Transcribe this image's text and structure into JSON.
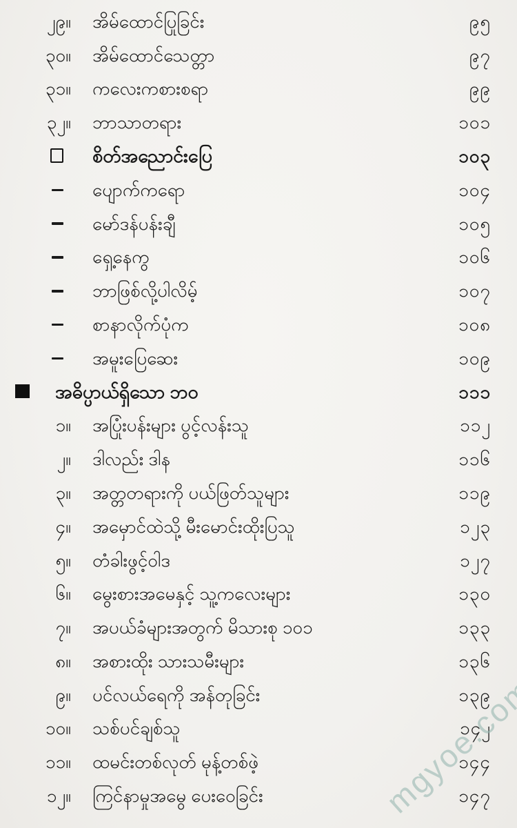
{
  "page": {
    "background_color": "#f2f1ee",
    "text_color": "#1a1a1a",
    "watermark": {
      "text": "mgyoe.com",
      "color": "rgba(152,184,176,0.6)"
    }
  },
  "toc": {
    "entries": [
      {
        "type": "number",
        "marker": "၂၉။",
        "title": "အိမ်ထောင်ပြုခြင်း",
        "page": "၉၅",
        "bold": false
      },
      {
        "type": "number",
        "marker": "၃၀။",
        "title": "အိမ်ထောင်သေတ္တာ",
        "page": "၉၇",
        "bold": false
      },
      {
        "type": "number",
        "marker": "၃၁။",
        "title": "ကလေးကစားစရာ",
        "page": "၉၉",
        "bold": false
      },
      {
        "type": "number",
        "marker": "၃၂။",
        "title": "ဘာသာတရား",
        "page": "၁၀၁",
        "bold": false
      },
      {
        "type": "square-open",
        "title": "စိတ်အညောင်းပြေ",
        "page": "၁၀၃",
        "bold": true
      },
      {
        "type": "dash",
        "title": "ပျောက်ကရော",
        "page": "၁၀၄",
        "bold": false
      },
      {
        "type": "dash",
        "title": "မော်ဒန်ပန်းချီ",
        "page": "၁၀၅",
        "bold": false
      },
      {
        "type": "dash",
        "title": "ရှေ့နေကွ",
        "page": "၁၀၆",
        "bold": false
      },
      {
        "type": "dash",
        "title": "ဘာဖြစ်လို့ပါလိမ့်",
        "page": "၁၀၇",
        "bold": false
      },
      {
        "type": "dash",
        "title": "စာနာလိုက်ပုံက",
        "page": "၁၀၈",
        "bold": false
      },
      {
        "type": "dash",
        "title": "အမူးပြေဆေး",
        "page": "၁၀၉",
        "bold": false
      },
      {
        "type": "square-filled",
        "title": "အဓိပ္ပာယ်ရှိသော ဘဝ",
        "page": "၁၁၁",
        "bold": true
      },
      {
        "type": "number",
        "marker": "၁။",
        "title": "အပြုံးပန်းများ ပွင့်လန်းသူ",
        "page": "၁၁၂",
        "bold": false
      },
      {
        "type": "number",
        "marker": "၂။",
        "title": "ဒါလည်း ဒါန",
        "page": "၁၁၆",
        "bold": false
      },
      {
        "type": "number",
        "marker": "၃။",
        "title": "အတ္တတရားကို ပယ်ဖြတ်သူများ",
        "page": "၁၁၉",
        "bold": false
      },
      {
        "type": "number",
        "marker": "၄။",
        "title": "အမှောင်ထဲသို့ မီးမောင်းထိုးပြသူ",
        "page": "၁၂၃",
        "bold": false
      },
      {
        "type": "number",
        "marker": "၅။",
        "title": "တံခါးဖွင့်ဝါဒ",
        "page": "၁၂၇",
        "bold": false
      },
      {
        "type": "number",
        "marker": "၆။",
        "title": "မွေးစားအမေနှင့် သူ့ကလေးများ",
        "page": "၁၃၀",
        "bold": false
      },
      {
        "type": "number",
        "marker": "၇။",
        "title": "အပယ်ခံများအတွက် မိသားစု ၁၀၁",
        "page": "၁၃၃",
        "bold": false
      },
      {
        "type": "number",
        "marker": "၈။",
        "title": "အစားထိုး သားသမီးများ",
        "page": "၁၃၆",
        "bold": false
      },
      {
        "type": "number",
        "marker": "၉။",
        "title": "ပင်လယ်ရေကို အန်တုခြင်း",
        "page": "၁၃၉",
        "bold": false
      },
      {
        "type": "number",
        "marker": "၁၀။",
        "title": "သစ်ပင်ချစ်သူ",
        "page": "၁၄၂",
        "bold": false
      },
      {
        "type": "number",
        "marker": "၁၁။",
        "title": "ထမင်းတစ်လုတ် မုန့်တစ်ဖဲ့",
        "page": "၁၄၄",
        "bold": false
      },
      {
        "type": "number",
        "marker": "၁၂။",
        "title": "ကြင်နာမှုအမွေ ပေးဝေခြင်း",
        "page": "၁၄၇",
        "bold": false
      }
    ]
  }
}
